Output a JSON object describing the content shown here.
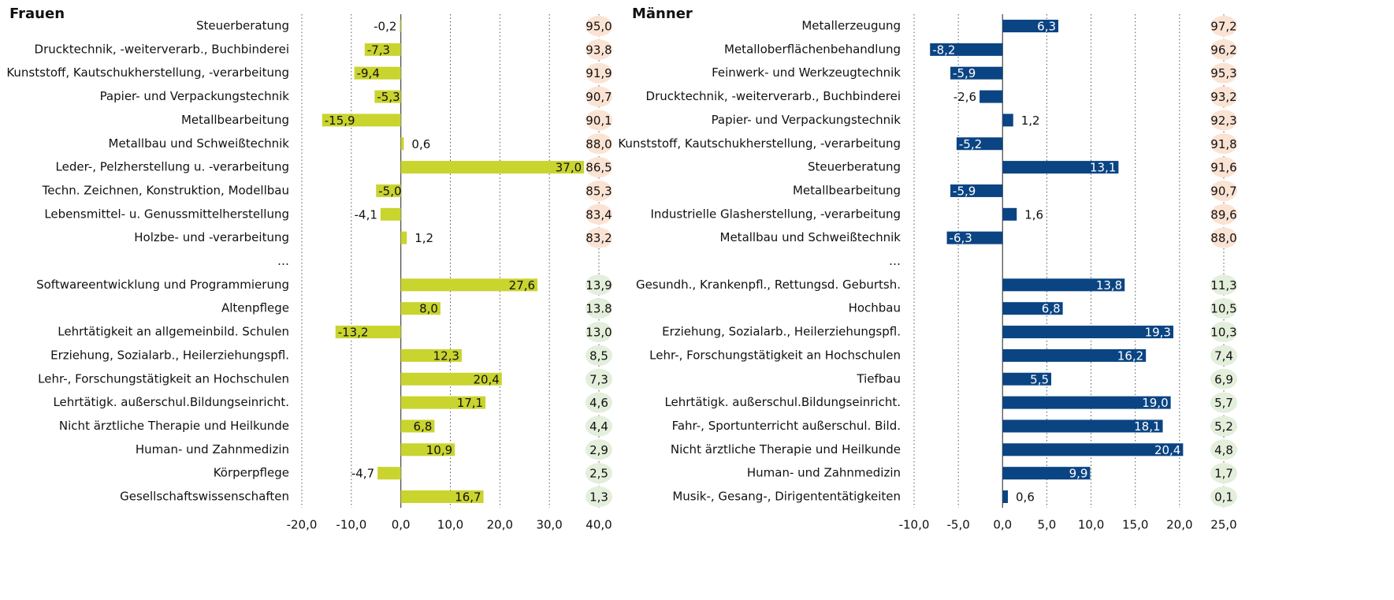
{
  "chart_data": [
    {
      "type": "bar",
      "orientation": "horizontal",
      "title": "Frauen",
      "color": "#c9d42e",
      "label_color": "#111",
      "categories": [
        "Steuerberatung",
        "Drucktechnik, -weiterverarb., Buchbinderei",
        "Kunststoff, Kautschukherstellung, -verarbeitung",
        "Papier- und Verpackungstechnik",
        "Metallbearbeitung",
        "Metallbau und Schweißtechnik",
        "Leder-, Pelzherstellung u. -verarbeitung",
        "Techn. Zeichnen, Konstruktion, Modellbau",
        "Lebensmittel- u. Genussmittelherstellung",
        "Holzbe- und -verarbeitung",
        "…",
        "Softwareentwicklung und Programmierung",
        "Altenpflege",
        "Lehrtätigkeit an allgemeinbild. Schulen",
        "Erziehung, Sozialarb., Heilerziehungspfl.",
        "Lehr-, Forschungstätigkeit an Hochschulen",
        "Lehrtätigk. außerschul.Bildungseinricht.",
        "Nicht ärztliche Therapie und Heilkunde",
        "Human- und Zahnmedizin",
        "Körperpflege",
        "Gesellschaftswissenschaften"
      ],
      "values": [
        -0.2,
        -7.3,
        -9.4,
        -5.3,
        -15.9,
        0.6,
        37.0,
        -5.0,
        -4.1,
        1.2,
        null,
        27.6,
        8.0,
        -13.2,
        12.3,
        20.4,
        17.1,
        6.8,
        10.9,
        -4.7,
        16.7
      ],
      "value_labels": [
        "-0,2",
        "-7,3",
        "-9,4",
        "-5,3",
        "-15,9",
        "0,6",
        "37,0",
        "-5,0",
        "-4,1",
        "1,2",
        null,
        "27,6",
        "8,0",
        "-13,2",
        "12,3",
        "20,4",
        "17,1",
        "6,8",
        "10,9",
        "-4,7",
        "16,7"
      ],
      "shares": [
        95.0,
        93.8,
        91.9,
        90.7,
        90.1,
        88.0,
        86.5,
        85.3,
        83.4,
        83.2,
        null,
        13.9,
        13.8,
        13.0,
        8.5,
        7.3,
        4.6,
        4.4,
        2.9,
        2.5,
        1.3
      ],
      "share_labels": [
        "95,0",
        "93,8",
        "91,9",
        "90,7",
        "90,1",
        "88,0",
        "86,5",
        "85,3",
        "83,4",
        "83,2",
        null,
        "13,9",
        "13.8",
        "13,0",
        "8,5",
        "7,3",
        "4,6",
        "4,4",
        "2,9",
        "2,5",
        "1,3"
      ],
      "share_colors": [
        "#fbe3d4",
        "#e3eedb"
      ],
      "xlim": [
        -20,
        40
      ],
      "xticks": [
        {
          "value": -20,
          "label": "-20,0"
        },
        {
          "value": -10,
          "label": "-10,0"
        },
        {
          "value": 0,
          "label": "0,0"
        },
        {
          "value": 10,
          "label": "10,0"
        },
        {
          "value": 20,
          "label": "20,0"
        },
        {
          "value": 30,
          "label": "30,0"
        },
        {
          "value": 40,
          "label": "40,0"
        }
      ],
      "grid": true
    },
    {
      "type": "bar",
      "orientation": "horizontal",
      "title": "Männer",
      "color": "#0b4483",
      "label_color": "#fff",
      "categories": [
        "Metallerzeugung",
        "Metalloberflächenbehandlung",
        "Feinwerk- und Werkzeugtechnik",
        "Drucktechnik, -weiterverarb., Buchbinderei",
        "Papier- und Verpackungstechnik",
        "Kunststoff, Kautschukherstellung, -verarbeitung",
        "Steuerberatung",
        "Metallbearbeitung",
        "Industrielle Glasherstellung, -verarbeitung",
        "Metallbau und Schweißtechnik",
        "…",
        "Gesundh., Krankenpfl., Rettungsd. Geburtsh.",
        "Hochbau",
        "Erziehung, Sozialarb., Heilerziehungspfl.",
        "Lehr-, Forschungstätigkeit an Hochschulen",
        "Tiefbau",
        "Lehrtätigk. außerschul.Bildungseinricht.",
        "Fahr-, Sportunterricht außerschul. Bild.",
        "Nicht ärztliche Therapie und Heilkunde",
        "Human- und Zahnmedizin",
        "Musik-, Gesang-, Dirigententätigkeiten"
      ],
      "values": [
        6.3,
        -8.2,
        -5.9,
        -2.6,
        1.2,
        -5.2,
        13.1,
        -5.9,
        1.6,
        -6.3,
        null,
        13.8,
        6.8,
        19.3,
        16.2,
        5.5,
        19.0,
        18.1,
        20.4,
        9.9,
        0.6
      ],
      "value_labels": [
        "6,3",
        "-8,2",
        "-5,9",
        "-2,6",
        "1,2",
        "-5,2",
        "13,1",
        "-5,9",
        "1,6",
        "-6,3",
        null,
        "13,8",
        "6,8",
        "19,3",
        "16,2",
        "5,5",
        "19,0",
        "18,1",
        "20,4",
        "9,9",
        "0,6"
      ],
      "shares": [
        97.2,
        96.2,
        95.3,
        93.2,
        92.3,
        91.8,
        91.6,
        90.7,
        89.6,
        88.0,
        null,
        11.3,
        10.5,
        10.3,
        7.4,
        6.9,
        5.7,
        5.2,
        4.8,
        1.7,
        0.1
      ],
      "share_labels": [
        "97,2",
        "96,2",
        "95,3",
        "93,2",
        "92,3",
        "91,8",
        "91,6",
        "90,7",
        "89,6",
        "88,0",
        null,
        "11,3",
        "10,5",
        "10,3",
        "7,4",
        "6,9",
        "5,7",
        "5,2",
        "4,8",
        "1,7",
        "0,1"
      ],
      "share_colors": [
        "#fbe3d4",
        "#e3eedb"
      ],
      "xlim": [
        -10,
        25
      ],
      "xticks": [
        {
          "value": -10,
          "label": "-10,0"
        },
        {
          "value": -5,
          "label": "-5,0"
        },
        {
          "value": 0,
          "label": "0,0"
        },
        {
          "value": 5,
          "label": "5,0"
        },
        {
          "value": 10,
          "label": "10,0"
        },
        {
          "value": 15,
          "label": "15,0"
        },
        {
          "value": 20,
          "label": "20,0"
        },
        {
          "value": 25,
          "label": "25,0"
        }
      ],
      "grid": true
    }
  ]
}
